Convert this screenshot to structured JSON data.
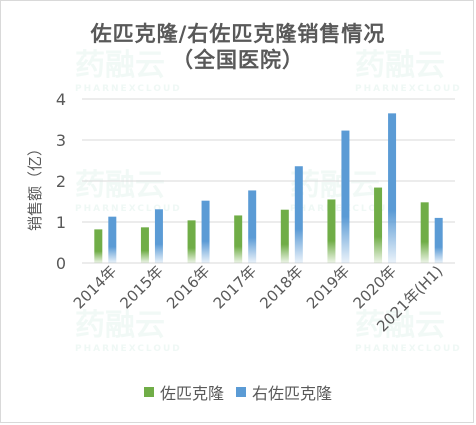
{
  "chart_data": {
    "type": "bar",
    "title": "佐匹克隆/右佐匹克隆销售情况",
    "subtitle": "（全国医院）",
    "ylabel": "销售额（亿）",
    "xlabel": "",
    "ylim": [
      0,
      4
    ],
    "yticks": [
      "0",
      "1",
      "2",
      "3",
      "4"
    ],
    "grid": true,
    "legend_position": "bottom",
    "categories": [
      "2014年",
      "2015年",
      "2016年",
      "2017年",
      "2018年",
      "2019年",
      "2020年",
      "2021年(H1)"
    ],
    "series": [
      {
        "name": "佐匹克隆",
        "color": "#70ad47",
        "values": [
          0.82,
          0.87,
          1.04,
          1.16,
          1.3,
          1.55,
          1.84,
          1.48
        ]
      },
      {
        "name": "右佐匹克隆",
        "color": "#5b9bd5",
        "values": [
          1.13,
          1.31,
          1.52,
          1.77,
          2.36,
          3.23,
          3.65,
          1.1
        ]
      }
    ]
  },
  "watermark": {
    "text": "药融云",
    "sub": "PHARNEXCLOUD"
  }
}
